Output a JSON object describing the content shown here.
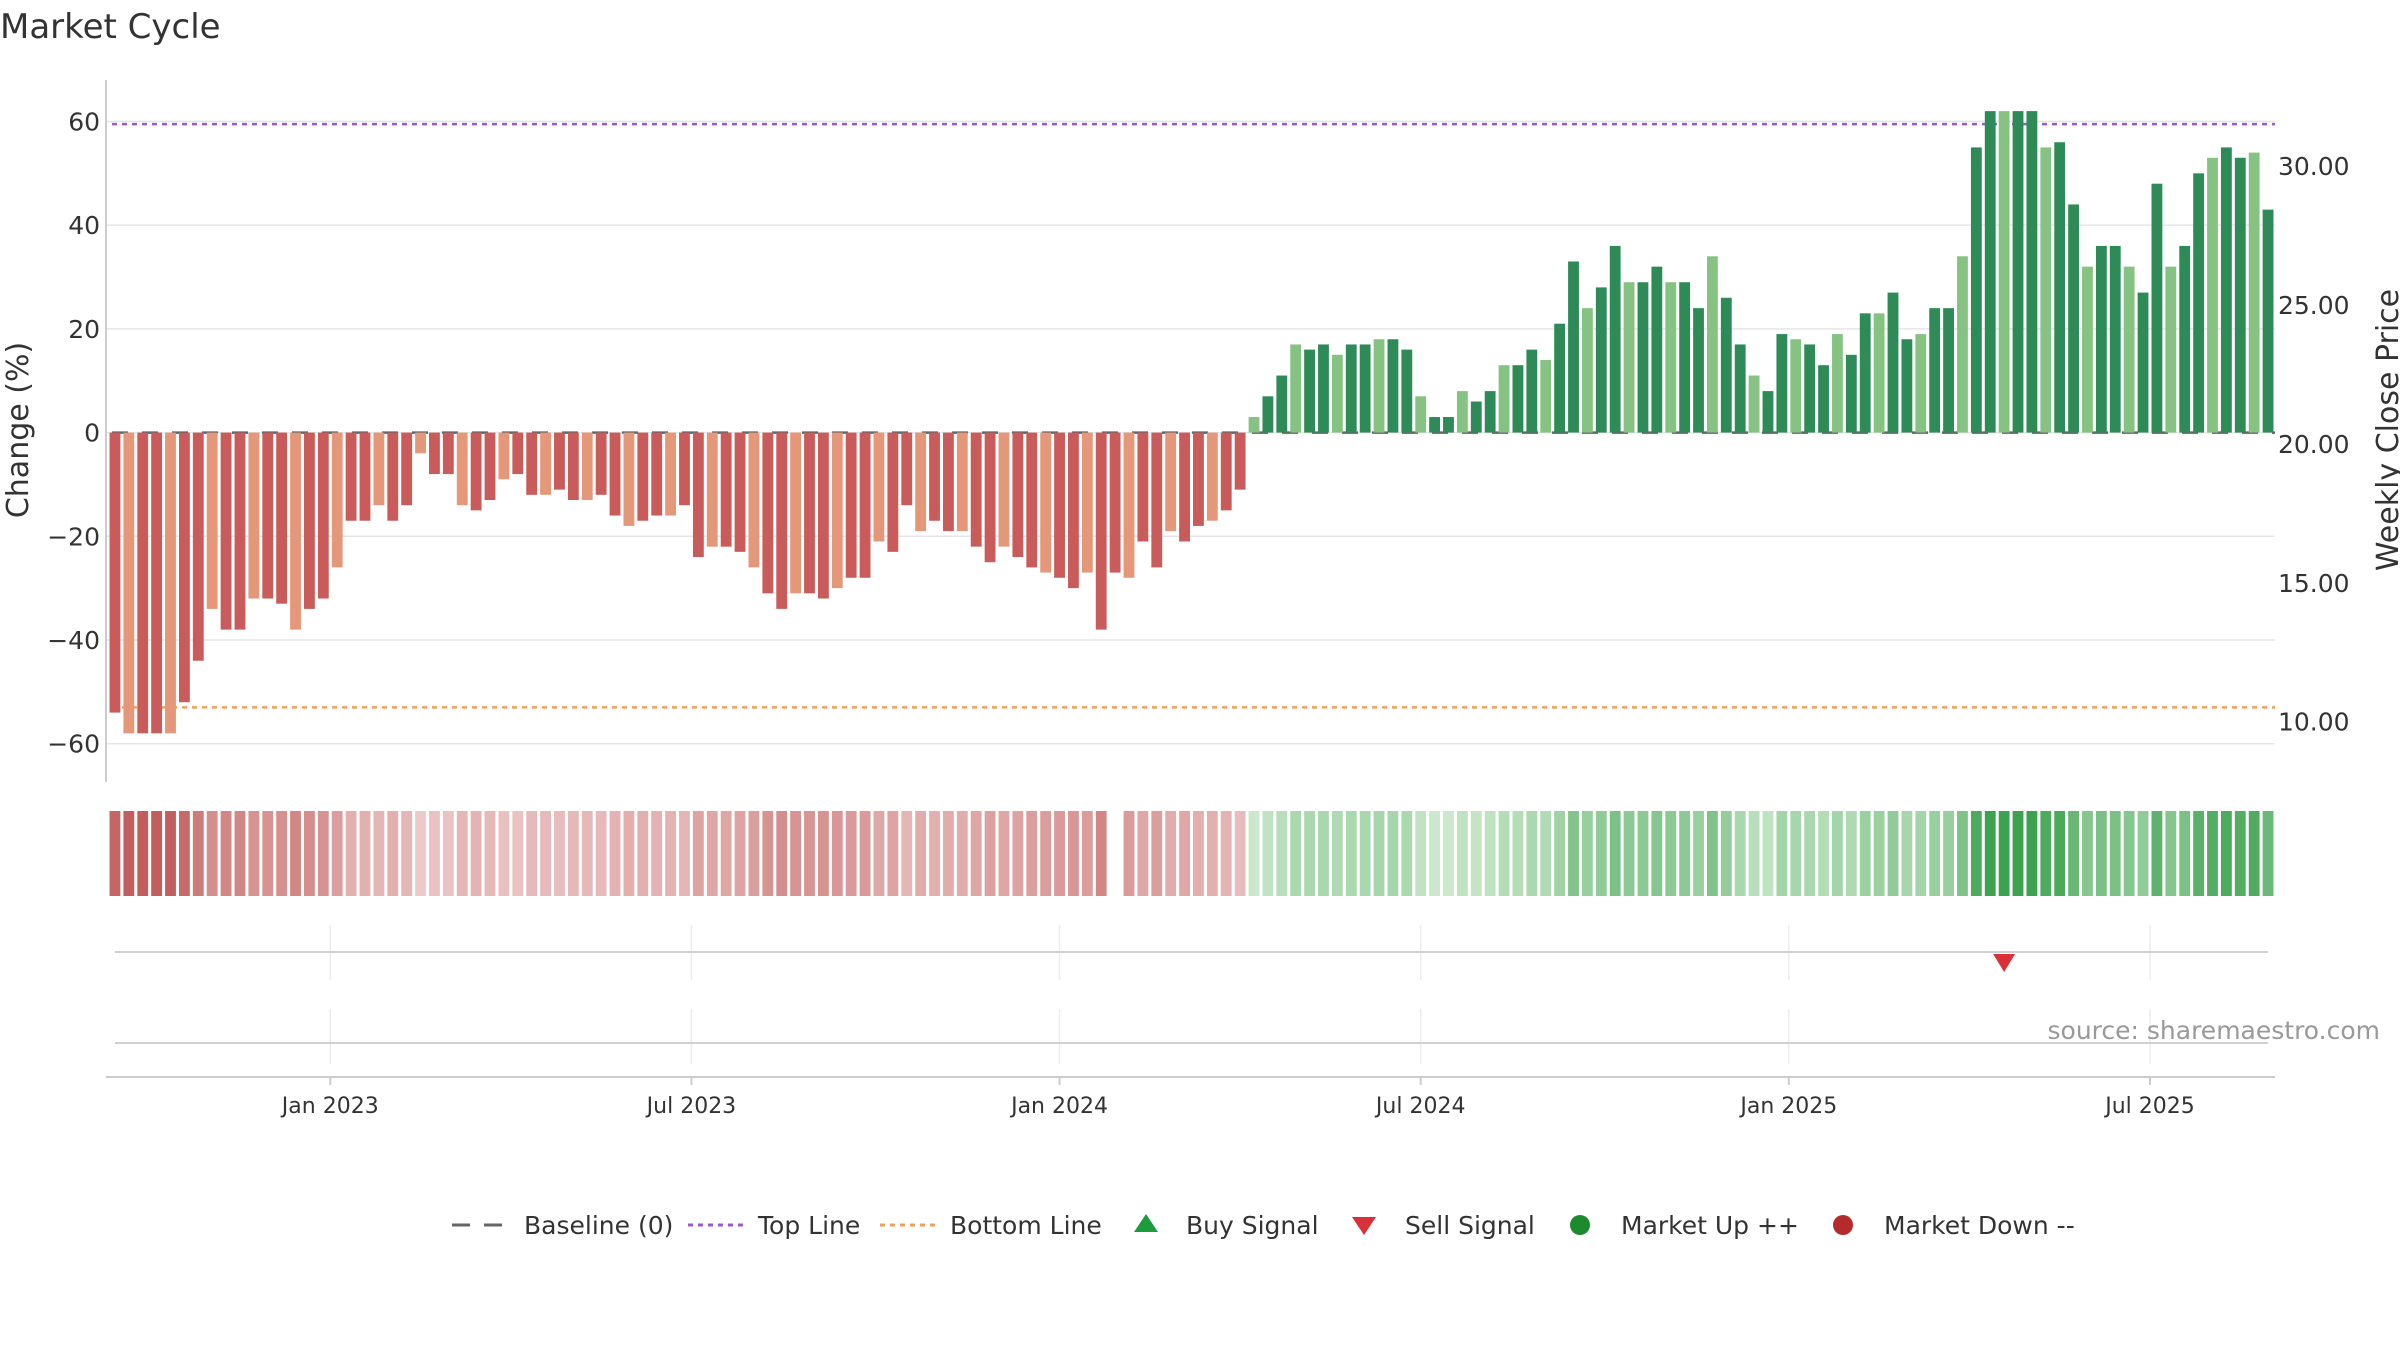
{
  "chart_data": {
    "type": "bar",
    "title": "Market Cycle",
    "ylabel": "Change (%)",
    "y2label": "Weekly Close Price",
    "ylim": [
      -67,
      68
    ],
    "y2lim": [
      7.9,
      33.1
    ],
    "grid": true,
    "y_ticks": [
      60,
      40,
      20,
      0,
      -20,
      -40,
      -60
    ],
    "y_tick_labels": [
      "60",
      "40",
      "20",
      "0",
      "−20",
      "−40",
      "−60"
    ],
    "y2_ticks": [
      30,
      25,
      20,
      15,
      10
    ],
    "y2_tick_labels": [
      "30.00",
      "25.00",
      "20.00",
      "15.00",
      "10.00"
    ],
    "x_ticks": [
      "Jan 2023",
      "Jul 2023",
      "Jan 2024",
      "Jul 2024",
      "Jan 2025",
      "Jul 2025"
    ],
    "x_tick_index": [
      15.5,
      41.5,
      68,
      94,
      120.5,
      146.5
    ],
    "top_line": 59.5,
    "bottom_line": -53,
    "baseline": 0,
    "gap_after_index": 72,
    "values": [
      -54,
      -58,
      -58,
      -58,
      -58,
      -52,
      -44,
      -34,
      -38,
      -38,
      -32,
      -32,
      -33,
      -38,
      -34,
      -32,
      -26,
      -17,
      -17,
      -14,
      -17,
      -14,
      -4,
      -8,
      -8,
      -14,
      -15,
      -13,
      -9,
      -8,
      -12,
      -12,
      -11,
      -13,
      -13,
      -12,
      -16,
      -18,
      -17,
      -16,
      -16,
      -14,
      -24,
      -22,
      -22,
      -23,
      -26,
      -31,
      -34,
      -31,
      -31,
      -32,
      -30,
      -28,
      -28,
      -21,
      -23,
      -14,
      -19,
      -17,
      -19,
      -19,
      -22,
      -25,
      -22,
      -24,
      -26,
      -27,
      -28,
      -30,
      -27,
      -38,
      -27,
      -28,
      -21,
      -26,
      -19,
      -21,
      -18,
      -17,
      -15,
      -11,
      3,
      7,
      11,
      17,
      16,
      17,
      15,
      17,
      17,
      18,
      18,
      16,
      7,
      3,
      3,
      8,
      6,
      8,
      13,
      13,
      16,
      14,
      21,
      33,
      24,
      28,
      36,
      29,
      29,
      32,
      29,
      29,
      24,
      34,
      26,
      17,
      11,
      8,
      19,
      18,
      17,
      13,
      19,
      15,
      23,
      23,
      27,
      18,
      19,
      24,
      24,
      34,
      55,
      62,
      62,
      62,
      62,
      55,
      56,
      44,
      32,
      36,
      36,
      32,
      27,
      48,
      32,
      36,
      50,
      53,
      55,
      53,
      54,
      43
    ],
    "bar_colors": {
      "strong_down": "#c95b5b",
      "weak_down": "#e5977a",
      "strong_up": "#2e8b57",
      "weak_up": "#86c382"
    },
    "heat_colors": {
      "down_dark": "#c25e5e",
      "down_light": "#f0d2d2",
      "up_light": "#d2ebd2",
      "up_dark": "#3da24f"
    },
    "signals": [
      {
        "type": "sell",
        "index": 136
      }
    ],
    "legend": [
      {
        "label": "Baseline (0)",
        "symbol": "dash",
        "color": "#666666"
      },
      {
        "label": "Top Line",
        "symbol": "dotted",
        "color": "#9b59d0"
      },
      {
        "label": "Bottom Line",
        "symbol": "dotted",
        "color": "#f0a05a"
      },
      {
        "label": "Buy Signal",
        "symbol": "triangle-up",
        "color": "#1e9b3c"
      },
      {
        "label": "Sell Signal",
        "symbol": "triangle-down",
        "color": "#d9303a"
      },
      {
        "label": "Market Up ++",
        "symbol": "circle",
        "color": "#1e8a2e"
      },
      {
        "label": "Market Down --",
        "symbol": "circle",
        "color": "#b52a2a"
      }
    ],
    "legend_position": "bottom-center",
    "source": "source: sharemaestro.com"
  }
}
